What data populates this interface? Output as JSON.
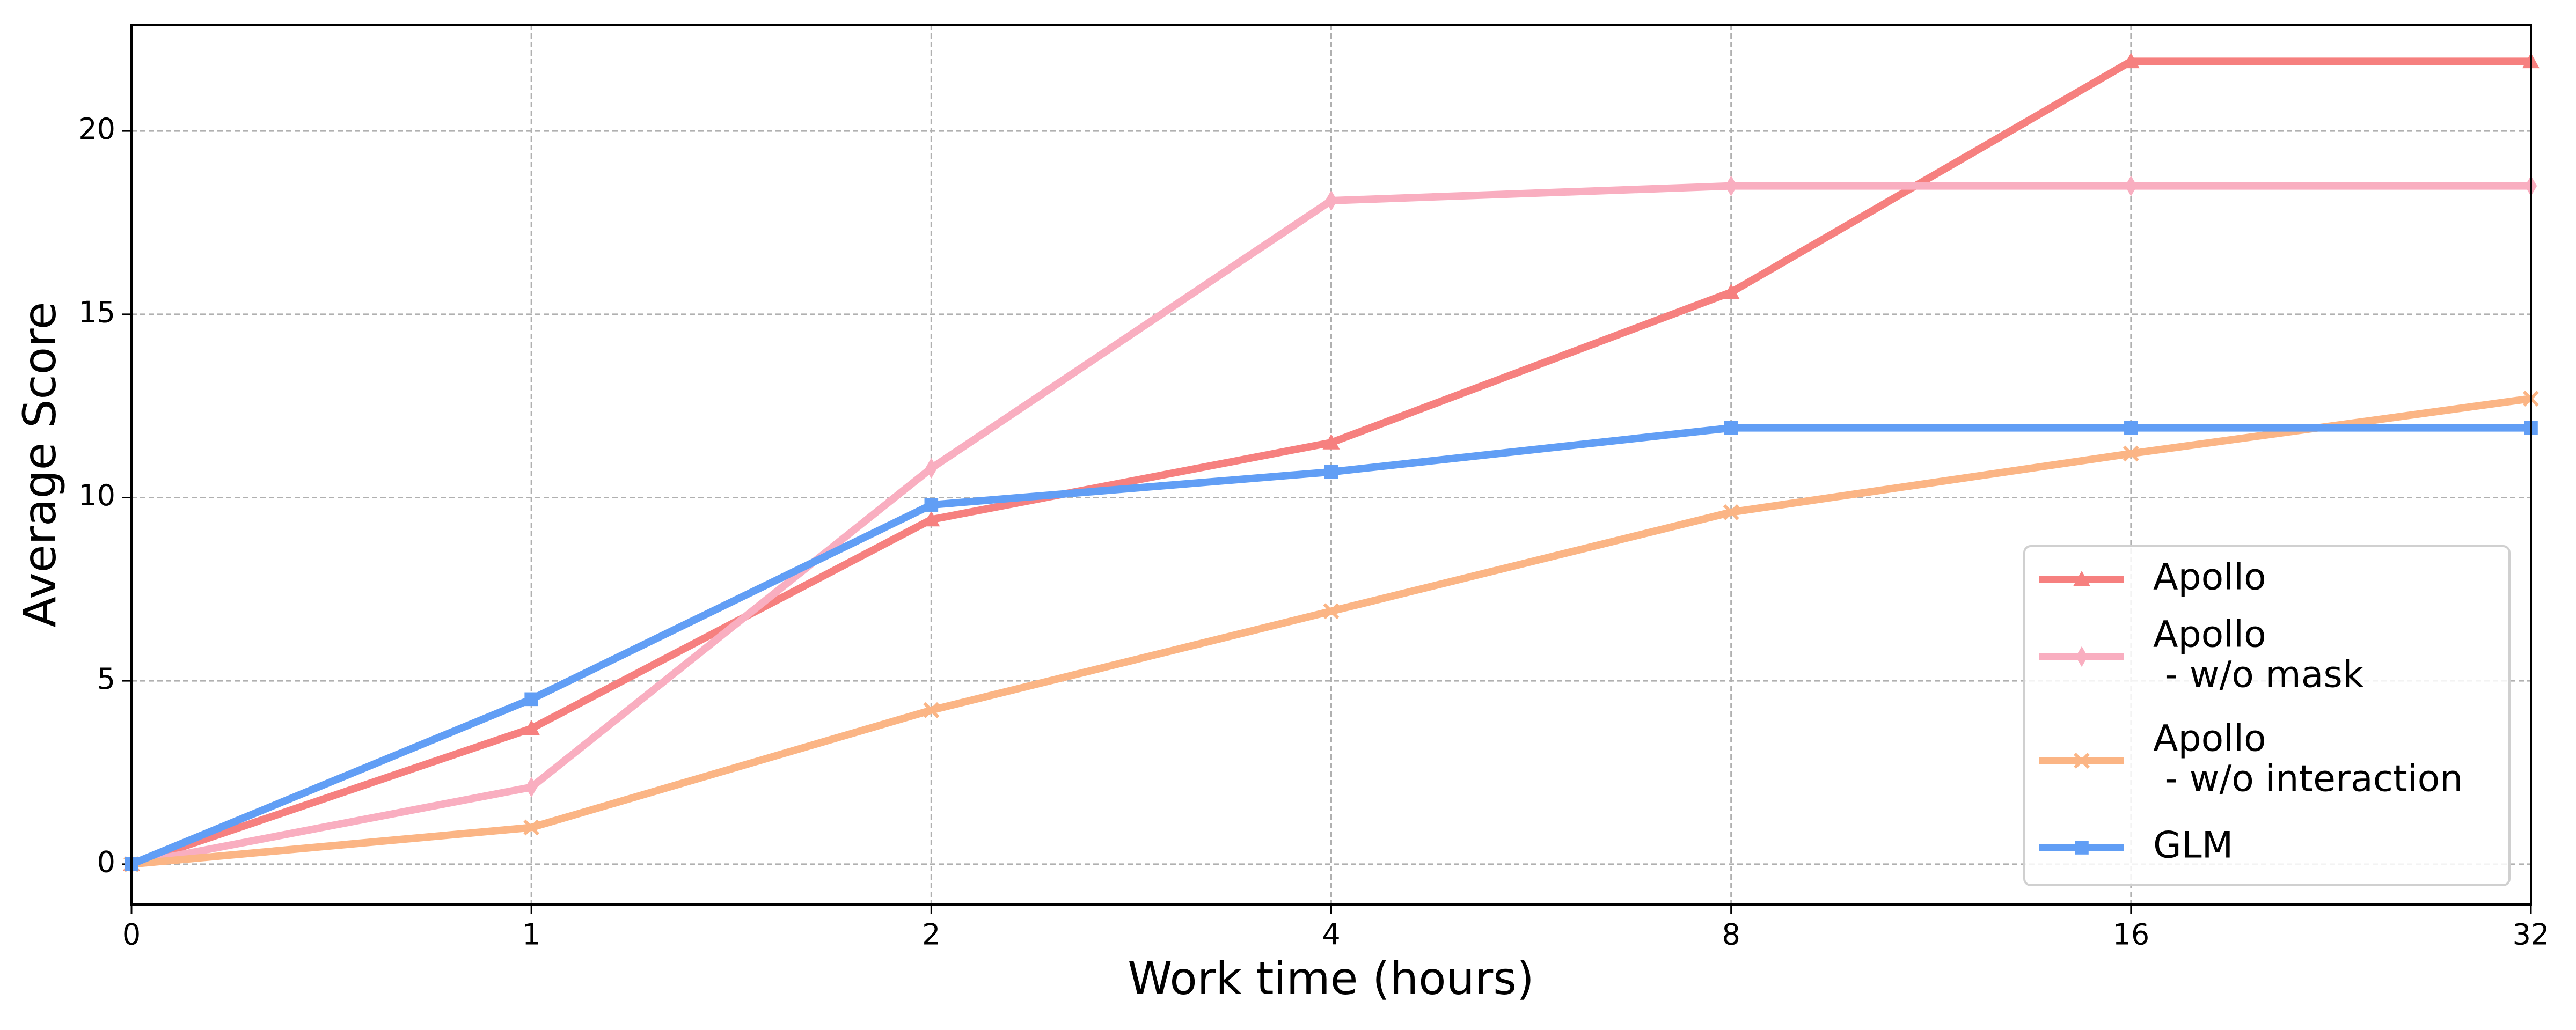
{
  "chart_data": {
    "type": "line",
    "x_label": "Work time (hours)",
    "y_label": "Average Score",
    "categories": [
      "0",
      "1",
      "2",
      "4",
      "8",
      "16",
      "32"
    ],
    "series": [
      {
        "name": "Apollo",
        "color": "#f6807f",
        "marker": "triangle",
        "values": [
          0,
          3.7,
          9.4,
          11.5,
          15.6,
          21.9,
          21.9
        ]
      },
      {
        "name": "Apollo\n - w/o mask",
        "color": "#f9aec0",
        "marker": "diamond",
        "values": [
          0,
          2.1,
          10.8,
          18.1,
          18.5,
          18.5,
          18.5
        ]
      },
      {
        "name": "Apollo\n - w/o interaction",
        "color": "#fbb585",
        "marker": "x",
        "values": [
          0,
          1.0,
          4.2,
          6.9,
          9.6,
          11.2,
          12.7
        ]
      },
      {
        "name": "GLM",
        "color": "#619ef5",
        "marker": "square",
        "values": [
          0,
          4.5,
          9.8,
          10.7,
          11.9,
          11.9,
          11.9
        ]
      }
    ],
    "ylim": [
      -1.1,
      22.9
    ],
    "yticks": [
      0,
      5,
      10,
      15,
      20
    ],
    "grid": true,
    "legend": "lower right"
  }
}
